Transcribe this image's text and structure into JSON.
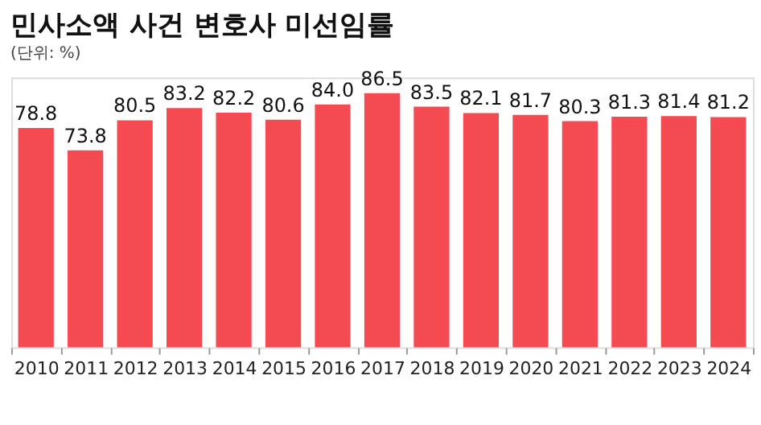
{
  "chart_data": {
    "type": "bar",
    "title": "민사소액 사건 변호사 미선임률",
    "subtitle": "(단위: %)",
    "categories": [
      "2010",
      "2011",
      "2012",
      "2013",
      "2014",
      "2015",
      "2016",
      "2017",
      "2018",
      "2019",
      "2020",
      "2021",
      "2022",
      "2023",
      "2024"
    ],
    "values": [
      78.8,
      73.8,
      80.5,
      83.2,
      82.2,
      80.6,
      84.0,
      86.5,
      83.5,
      82.1,
      81.7,
      80.3,
      81.3,
      81.4,
      81.2
    ],
    "value_labels": [
      "78.8",
      "73.8",
      "80.5",
      "83.2",
      "82.2",
      "80.6",
      "84.0",
      "86.5",
      "83.5",
      "82.1",
      "81.7",
      "80.3",
      "81.3",
      "81.4",
      "81.2"
    ],
    "color": "#f44b52",
    "ylim": [
      30,
      90
    ],
    "tick_labels": "x",
    "grid": false
  }
}
